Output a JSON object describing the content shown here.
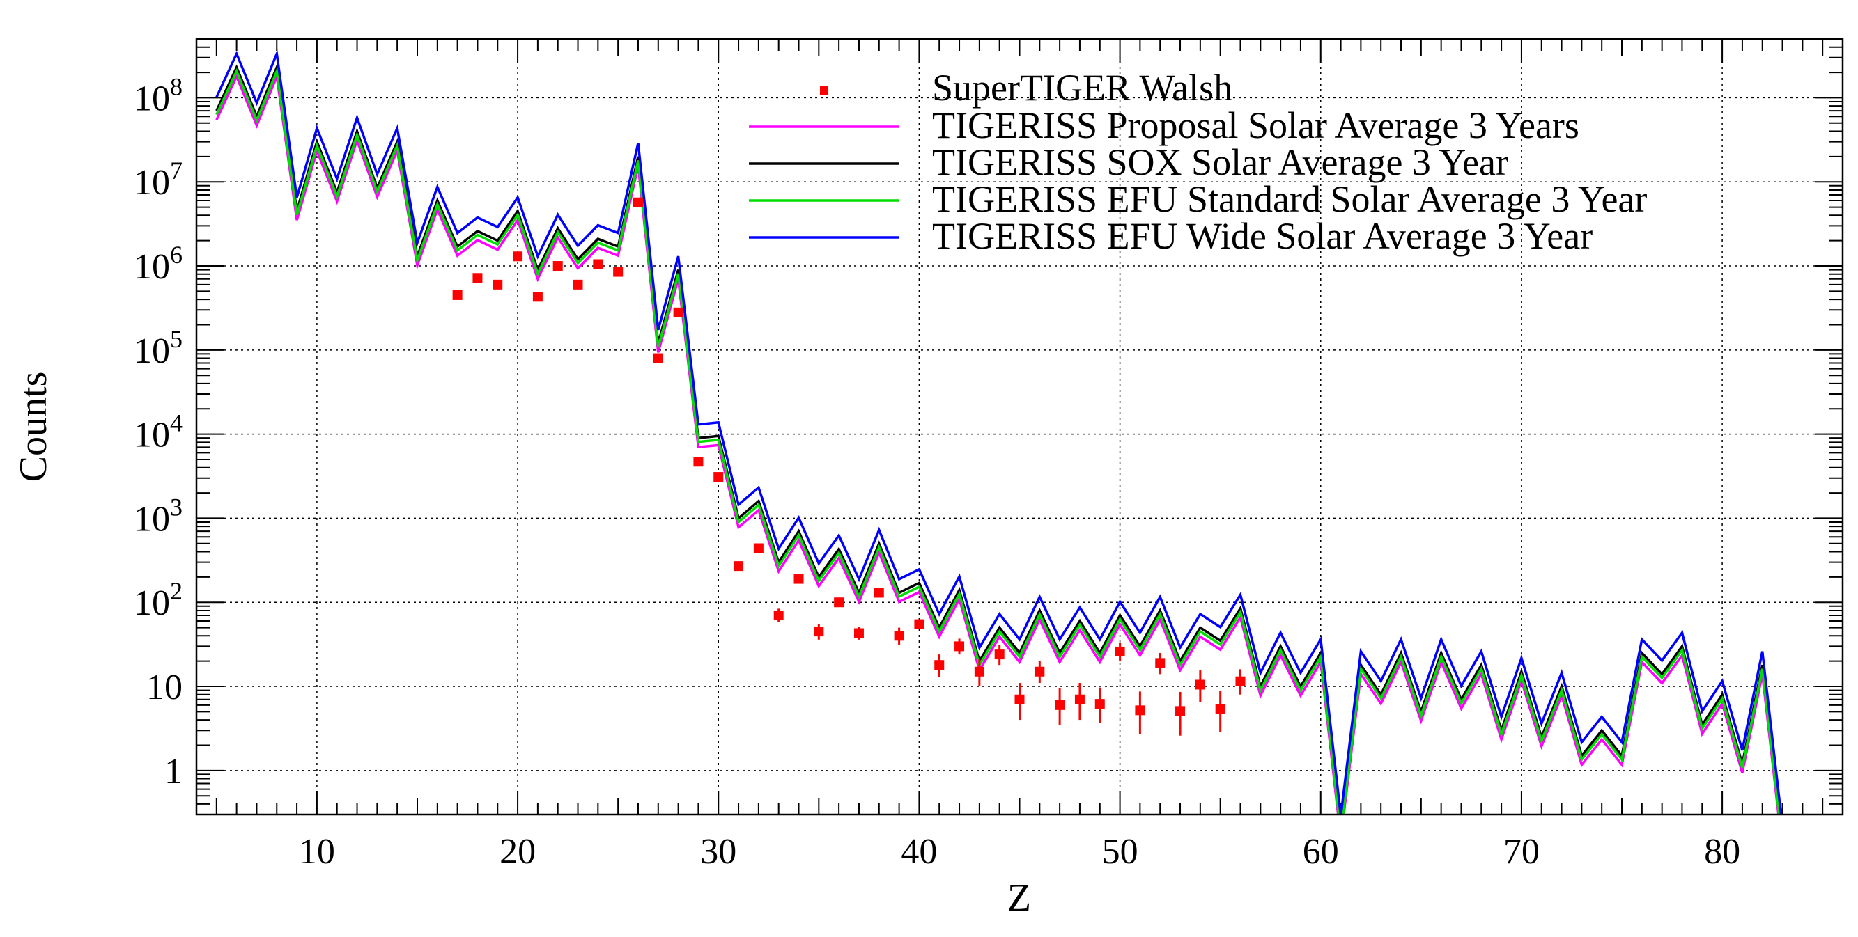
{
  "chart_data": {
    "type": "line",
    "title": "",
    "xlabel": "Z",
    "ylabel": "Counts",
    "xlim": [
      4,
      86
    ],
    "ylim": [
      0.3,
      500000000
    ],
    "yscale": "log",
    "grid": true,
    "legend_position": "top-right",
    "x_ticks": [
      10,
      20,
      30,
      40,
      50,
      60,
      70,
      80
    ],
    "x_tick_labels": [
      "10",
      "20",
      "30",
      "40",
      "50",
      "60",
      "70",
      "80"
    ],
    "y_ticks": [
      1,
      10,
      100,
      1000,
      10000,
      100000,
      1000000,
      10000000,
      100000000
    ],
    "y_tick_labels": [
      {
        "text": "1",
        "base": "",
        "exp": ""
      },
      {
        "text": "10",
        "base": "",
        "exp": ""
      },
      {
        "text": "",
        "base": "10",
        "exp": "2"
      },
      {
        "text": "",
        "base": "10",
        "exp": "3"
      },
      {
        "text": "",
        "base": "10",
        "exp": "4"
      },
      {
        "text": "",
        "base": "10",
        "exp": "5"
      },
      {
        "text": "",
        "base": "10",
        "exp": "6"
      },
      {
        "text": "",
        "base": "10",
        "exp": "7"
      },
      {
        "text": "",
        "base": "10",
        "exp": "8"
      }
    ],
    "z": [
      5,
      6,
      7,
      8,
      9,
      10,
      11,
      12,
      13,
      14,
      15,
      16,
      17,
      18,
      19,
      20,
      21,
      22,
      23,
      24,
      25,
      26,
      27,
      28,
      29,
      30,
      31,
      32,
      33,
      34,
      35,
      36,
      37,
      38,
      39,
      40,
      41,
      42,
      43,
      44,
      45,
      46,
      47,
      48,
      49,
      50,
      51,
      52,
      53,
      54,
      55,
      56,
      57,
      58,
      59,
      60,
      61,
      62,
      63,
      64,
      65,
      66,
      67,
      68,
      69,
      70,
      71,
      72,
      73,
      74,
      75,
      76,
      77,
      78,
      79,
      80,
      81,
      82,
      83
    ],
    "series": [
      {
        "name": "TIGERISS Proposal Solar Average 3 Years",
        "color": "#ff00ff",
        "scale": 0.78
      },
      {
        "name": "TIGERISS SOX Solar Average 3 Year",
        "color": "#000000",
        "scale": 1.0
      },
      {
        "name": "TIGERISS EFU Standard Solar Average 3 Year",
        "color": "#00dd00",
        "scale": 0.9
      },
      {
        "name": "TIGERISS EFU Wide Solar Average 3 Year",
        "color": "#0000ff",
        "scale": 1.45
      }
    ],
    "base_values": [
      70000000,
      230000000,
      60000000,
      230000000,
      4500000,
      30000000,
      7500000,
      40000000,
      8500000,
      30000000,
      1300000,
      6000000,
      1700000,
      2600000,
      2000000,
      4500000,
      900000,
      2800000,
      1200000,
      2100000,
      1700000,
      20000000,
      120000,
      900000,
      9000,
      9500,
      1000,
      1600,
      300,
      700,
      200,
      430,
      130,
      500,
      130,
      170,
      50,
      140,
      20,
      50,
      25,
      80,
      25,
      60,
      25,
      70,
      30,
      80,
      20,
      50,
      35,
      85,
      10,
      30,
      10,
      25,
      0.2,
      18,
      8,
      25,
      5,
      25,
      7,
      18,
      3,
      15,
      2.5,
      10,
      1.5,
      3,
      1.5,
      25,
      14,
      30,
      3.5,
      8,
      1.2,
      18,
      0.15
    ],
    "supertiger": {
      "name": "SuperTIGER Walsh",
      "color": "#ff0000",
      "z": [
        17,
        18,
        19,
        20,
        21,
        22,
        23,
        24,
        25,
        26,
        27,
        28,
        29,
        30,
        31,
        32,
        33,
        34,
        35,
        36,
        37,
        38,
        39,
        40,
        41,
        42,
        43,
        44,
        45,
        46,
        47,
        48,
        49,
        50,
        51,
        52,
        53,
        54,
        55,
        56
      ],
      "values": [
        450000,
        720000,
        600000,
        1300000,
        430000,
        1000000,
        600000,
        1050000,
        850000,
        5700000,
        80000,
        280000,
        4700,
        3100,
        270,
        440,
        70,
        190,
        45,
        100,
        43,
        130,
        40,
        55,
        18,
        30,
        15,
        24,
        7,
        15,
        6,
        7,
        6.2,
        26,
        5.2,
        19,
        5.1,
        10.5,
        5.4,
        11.5
      ],
      "err_lo": [
        0,
        0,
        0,
        0,
        0,
        0,
        0,
        0,
        0,
        0,
        0,
        0,
        0,
        0,
        0,
        0,
        12,
        0,
        9,
        0,
        7,
        0,
        9,
        7,
        5,
        6,
        5,
        6,
        3,
        4,
        2.5,
        3,
        2.5,
        6,
        2.5,
        5,
        2.5,
        4,
        2.5,
        3.5
      ],
      "err_hi": [
        0,
        0,
        0,
        0,
        0,
        0,
        0,
        0,
        0,
        0,
        0,
        0,
        0,
        0,
        0,
        0,
        14,
        0,
        10,
        0,
        8,
        0,
        10,
        8,
        6,
        7,
        6,
        7,
        4,
        5,
        3.5,
        4,
        3.5,
        7,
        3.5,
        6,
        3.5,
        5,
        3.5,
        4.5
      ]
    }
  }
}
